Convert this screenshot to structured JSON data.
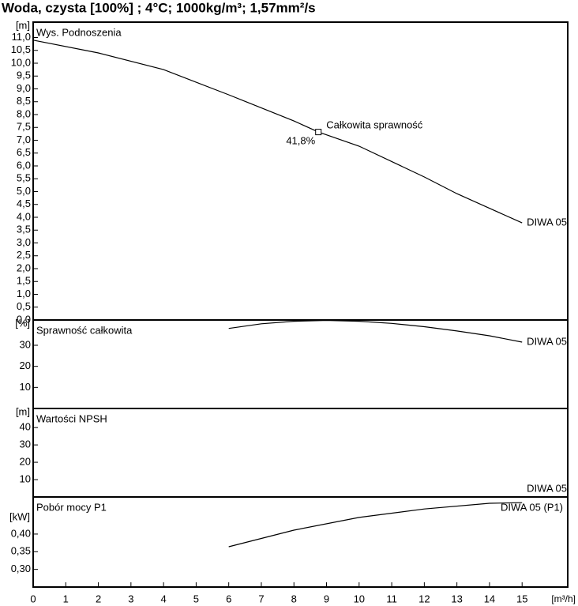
{
  "chart_data": [
    {
      "type": "line",
      "title": "Woda, czysta [100%] ; 4°C; 1000kg/m³; 1,57mm²/s",
      "panel_title": "Wys. Podnoszenia",
      "ylabel": "[m]",
      "xlim": [
        0,
        16.4
      ],
      "ylim": [
        0,
        11.6
      ],
      "yticks": [
        {
          "value": 0,
          "label": "0,0"
        },
        {
          "value": 0.5,
          "label": "0,5"
        },
        {
          "value": 1,
          "label": "1,0"
        },
        {
          "value": 1.5,
          "label": "1,5"
        },
        {
          "value": 2,
          "label": "2,0"
        },
        {
          "value": 2.5,
          "label": "2,5"
        },
        {
          "value": 3,
          "label": "3,0"
        },
        {
          "value": 3.5,
          "label": "3,5"
        },
        {
          "value": 4,
          "label": "4,0"
        },
        {
          "value": 4.5,
          "label": "4,5"
        },
        {
          "value": 5,
          "label": "5,0"
        },
        {
          "value": 5.5,
          "label": "5,5"
        },
        {
          "value": 6,
          "label": "6,0"
        },
        {
          "value": 6.5,
          "label": "6,5"
        },
        {
          "value": 7,
          "label": "7,0"
        },
        {
          "value": 7.5,
          "label": "7,5"
        },
        {
          "value": 8,
          "label": "8,0"
        },
        {
          "value": 8.5,
          "label": "8,5"
        },
        {
          "value": 9,
          "label": "9,0"
        },
        {
          "value": 9.5,
          "label": "9,5"
        },
        {
          "value": 10,
          "label": "10,0"
        },
        {
          "value": 10.5,
          "label": "10,5"
        },
        {
          "value": 11,
          "label": "11,0"
        }
      ],
      "series": [
        {
          "name": "DIWA 05",
          "color": "#000000",
          "x": [
            0,
            2,
            4,
            6,
            8,
            8.75,
            10,
            12,
            13,
            15
          ],
          "values": [
            10.9,
            10.4,
            9.75,
            8.77,
            7.75,
            7.32,
            6.77,
            5.57,
            4.92,
            3.78
          ]
        }
      ],
      "annotation": {
        "x": 8.75,
        "y": 7.32,
        "text": "Całkowita sprawność",
        "label": "41,8%"
      }
    },
    {
      "type": "line",
      "panel_title": "Sprawność całkowita",
      "ylabel": "[%]",
      "xlim": [
        0,
        16.4
      ],
      "ylim": [
        0,
        42
      ],
      "yticks": [
        10,
        20,
        30
      ],
      "series": [
        {
          "name": "DIWA 05",
          "color": "#000000",
          "x": [
            6,
            7,
            8,
            9,
            10,
            11,
            12,
            13,
            14,
            15
          ],
          "values": [
            38,
            40.2,
            41.4,
            41.8,
            41.4,
            40.4,
            38.8,
            36.8,
            34.5,
            31.5
          ]
        }
      ]
    },
    {
      "type": "line",
      "panel_title": "Wartości NPSH",
      "ylabel": "[m]",
      "xlim": [
        0,
        16.4
      ],
      "ylim": [
        0,
        51
      ],
      "yticks": [
        10,
        20,
        30,
        40
      ],
      "series": [
        {
          "name": "DIWA 05",
          "color": "#000000",
          "x": [],
          "values": []
        }
      ]
    },
    {
      "type": "line",
      "panel_title": "Pobór mocy P1",
      "ylabel": "[kW]",
      "xlim": [
        0,
        16.4
      ],
      "ylim": [
        0.25,
        0.505
      ],
      "yticks": [
        {
          "value": 0.3,
          "label": "0,30"
        },
        {
          "value": 0.35,
          "label": "0,35"
        },
        {
          "value": 0.4,
          "label": "0,40"
        }
      ],
      "xticks": [
        0,
        1,
        2,
        3,
        4,
        5,
        6,
        7,
        8,
        9,
        10,
        11,
        12,
        13,
        14,
        15
      ],
      "xlabel": "[m³/h]",
      "series": [
        {
          "name": "DIWA 05 (P1)",
          "color": "#000000",
          "x": [
            6,
            8,
            10,
            12,
            14,
            15
          ],
          "values": [
            0.364,
            0.411,
            0.447,
            0.471,
            0.487,
            0.489
          ]
        }
      ]
    }
  ]
}
